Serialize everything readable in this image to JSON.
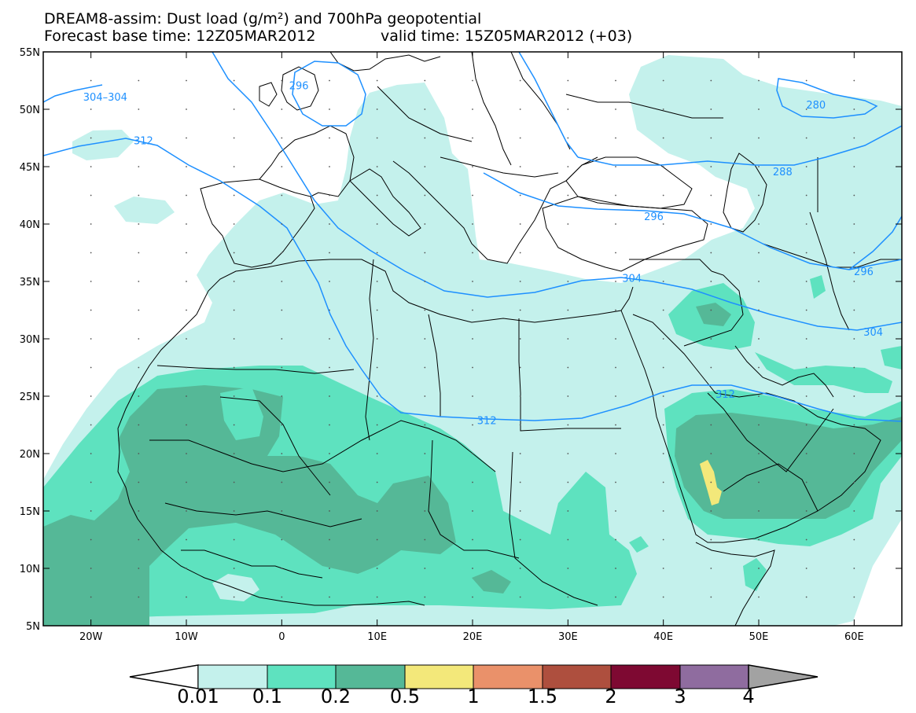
{
  "title": {
    "line1": "DREAM8-assim: Dust load (g/m²) and 700hPa geopotential",
    "line2_base": "Forecast base time: 12Z05MAR2012",
    "line2_valid": "valid time: 15Z05MAR2012 (+03)"
  },
  "colors": {
    "c001": "#c4f1ec",
    "c01": "#5ee2bf",
    "c02": "#55b897",
    "c05": "#f3e87a",
    "c1": "#ea916a",
    "c15": "#ae4f3e",
    "c2": "#7e0932",
    "c3": "#8f6c9f",
    "c4": "#a2a2a2",
    "contour": "#1e90ff",
    "border": "#000000"
  },
  "axes": {
    "lon_min": -25,
    "lon_max": 65,
    "lat_min": 5,
    "lat_max": 55,
    "x_ticks": [
      {
        "lon": -20,
        "label": "20W"
      },
      {
        "lon": -10,
        "label": "10W"
      },
      {
        "lon": 0,
        "label": "0"
      },
      {
        "lon": 10,
        "label": "10E"
      },
      {
        "lon": 20,
        "label": "20E"
      },
      {
        "lon": 30,
        "label": "30E"
      },
      {
        "lon": 40,
        "label": "40E"
      },
      {
        "lon": 50,
        "label": "50E"
      },
      {
        "lon": 60,
        "label": "60E"
      }
    ],
    "y_ticks": [
      {
        "lat": 55,
        "label": "55N"
      },
      {
        "lat": 50,
        "label": "50N"
      },
      {
        "lat": 45,
        "label": "45N"
      },
      {
        "lat": 40,
        "label": "40N"
      },
      {
        "lat": 35,
        "label": "35N"
      },
      {
        "lat": 30,
        "label": "30N"
      },
      {
        "lat": 25,
        "label": "25N"
      },
      {
        "lat": 20,
        "label": "20N"
      },
      {
        "lat": 15,
        "label": "15N"
      },
      {
        "lat": 10,
        "label": "10N"
      },
      {
        "lat": 5,
        "label": "5N"
      }
    ]
  },
  "contour_labels": [
    {
      "lon": -18.5,
      "lat": 51.1,
      "text": "304–304"
    },
    {
      "lon": 1.8,
      "lat": 52.1,
      "text": "296"
    },
    {
      "lon": -14.5,
      "lat": 47.3,
      "text": "312"
    },
    {
      "lon": 56.0,
      "lat": 50.4,
      "text": "280"
    },
    {
      "lon": 52.5,
      "lat": 44.6,
      "text": "288"
    },
    {
      "lon": 39.0,
      "lat": 40.7,
      "text": "296"
    },
    {
      "lon": 36.7,
      "lat": 35.3,
      "text": "304"
    },
    {
      "lon": 61.0,
      "lat": 35.9,
      "text": "296"
    },
    {
      "lon": 62.0,
      "lat": 30.6,
      "text": "304"
    },
    {
      "lon": 46.5,
      "lat": 25.2,
      "text": "312"
    },
    {
      "lon": 21.5,
      "lat": 22.9,
      "text": "312"
    }
  ],
  "colorbar": {
    "labels": [
      "0.01",
      "0.1",
      "0.2",
      "0.5",
      "1",
      "1.5",
      "2",
      "3",
      "4"
    ]
  }
}
